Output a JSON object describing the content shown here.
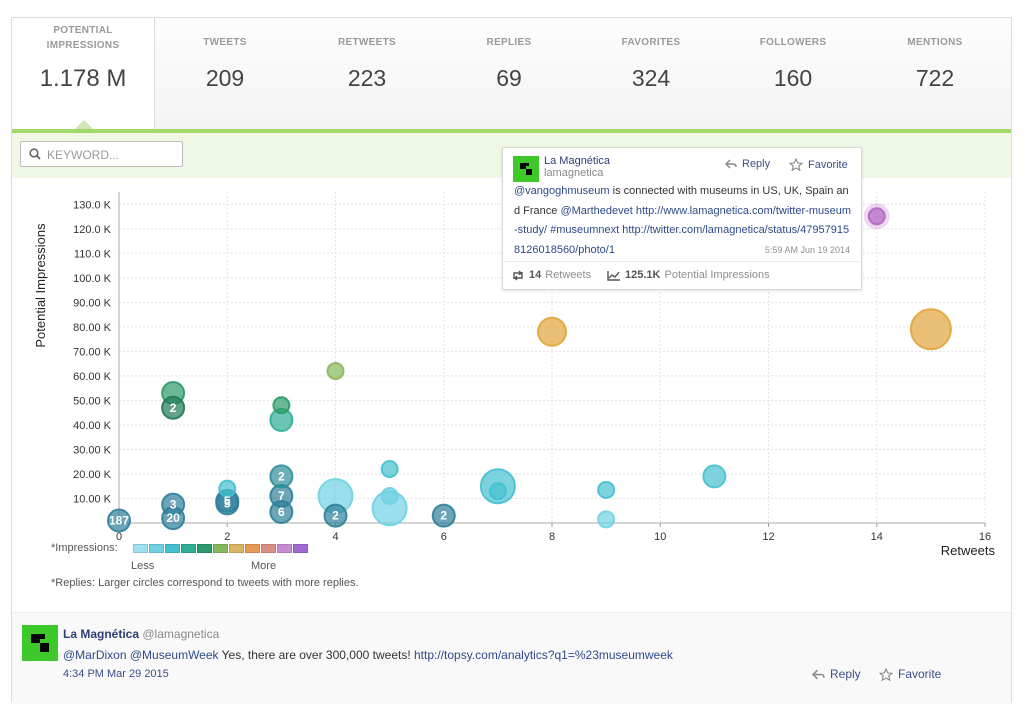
{
  "stats": [
    {
      "label": "POTENTIAL\nIMPRESSIONS",
      "value": "1.178 M",
      "active": true
    },
    {
      "label": "TWEETS",
      "value": "209"
    },
    {
      "label": "RETWEETS",
      "value": "223"
    },
    {
      "label": "REPLIES",
      "value": "69"
    },
    {
      "label": "FAVORITES",
      "value": "324"
    },
    {
      "label": "FOLLOWERS",
      "value": "160"
    },
    {
      "label": "MENTIONS",
      "value": "722"
    }
  ],
  "search": {
    "placeholder": "KEYWORD..."
  },
  "legend": {
    "impressions_label": "*Impressions:",
    "less": "Less",
    "more": "More",
    "replies_note": "*Replies: Larger circles correspond to tweets with more replies.",
    "colors": [
      "#9ee0ef",
      "#6fd1e3",
      "#44c0cf",
      "#2fae95",
      "#2b9a6a",
      "#86b85c",
      "#d9b565",
      "#e79a55",
      "#d98f86",
      "#c68ed0",
      "#a06ad0"
    ]
  },
  "chart_data": {
    "type": "scatter",
    "xlabel": "Retweets",
    "ylabel": "Potential Impressions",
    "xlim": [
      0,
      16
    ],
    "ylim": [
      0,
      135000
    ],
    "x_ticks": [
      0,
      2,
      4,
      6,
      8,
      10,
      12,
      14,
      16
    ],
    "y_ticks": [
      {
        "v": 10000,
        "label": "10.00 K"
      },
      {
        "v": 20000,
        "label": "20.00 K"
      },
      {
        "v": 30000,
        "label": "30.00 K"
      },
      {
        "v": 40000,
        "label": "40.00 K"
      },
      {
        "v": 50000,
        "label": "50.00 K"
      },
      {
        "v": 60000,
        "label": "60.00 K"
      },
      {
        "v": 70000,
        "label": "70.00 K"
      },
      {
        "v": 80000,
        "label": "80.00 K"
      },
      {
        "v": 90000,
        "label": "90.00 K"
      },
      {
        "v": 100000,
        "label": "100.0 K"
      },
      {
        "v": 110000,
        "label": "110.0 K"
      },
      {
        "v": 120000,
        "label": "120.0 K"
      },
      {
        "v": 130000,
        "label": "130.0 K"
      }
    ],
    "grid": true,
    "points": [
      {
        "x": 0,
        "y": 1000,
        "replies": 1,
        "color": "#2f7f9a",
        "count": "187"
      },
      {
        "x": 1,
        "y": 2000,
        "replies": 1,
        "color": "#2f7f9a",
        "count": "20"
      },
      {
        "x": 1,
        "y": 7500,
        "replies": 1,
        "color": "#2f7f9a",
        "count": "3"
      },
      {
        "x": 1,
        "y": 53000,
        "replies": 1,
        "color": "#2b9a6a"
      },
      {
        "x": 1,
        "y": 47000,
        "replies": 1,
        "color": "#1f7a55",
        "count": "2"
      },
      {
        "x": 2,
        "y": 14000,
        "replies": 0,
        "color": "#44c0cf"
      },
      {
        "x": 2,
        "y": 9000,
        "replies": 1,
        "color": "#2f7f9a",
        "count": "5"
      },
      {
        "x": 2,
        "y": 8000,
        "replies": 1,
        "color": "#2f7f9a",
        "count": "5"
      },
      {
        "x": 3,
        "y": 4500,
        "replies": 1,
        "color": "#2f7f9a",
        "count": "6"
      },
      {
        "x": 3,
        "y": 11000,
        "replies": 1,
        "color": "#2f7f9a",
        "count": "7"
      },
      {
        "x": 3,
        "y": 19000,
        "replies": 1,
        "color": "#2f8f9a",
        "count": "2"
      },
      {
        "x": 3,
        "y": 42000,
        "replies": 1,
        "color": "#2fae95"
      },
      {
        "x": 3,
        "y": 48000,
        "replies": 0,
        "color": "#2b9a6a"
      },
      {
        "x": 4,
        "y": 11000,
        "replies": 3,
        "color": "#6fd1e3"
      },
      {
        "x": 4,
        "y": 3000,
        "replies": 1,
        "color": "#2f7f9a",
        "count": "2"
      },
      {
        "x": 4,
        "y": 62000,
        "replies": 0,
        "color": "#86b85c"
      },
      {
        "x": 5,
        "y": 22000,
        "replies": 0,
        "color": "#44c0cf"
      },
      {
        "x": 5,
        "y": 6000,
        "replies": 3,
        "color": "#6fd1e3"
      },
      {
        "x": 5,
        "y": 11000,
        "replies": 0,
        "color": "#6fd1e3"
      },
      {
        "x": 6,
        "y": 3000,
        "replies": 1,
        "color": "#2f7f9a",
        "count": "2"
      },
      {
        "x": 7,
        "y": 15000,
        "replies": 3,
        "color": "#44c0cf"
      },
      {
        "x": 7,
        "y": 13000,
        "replies": 0,
        "color": "#44c0cf"
      },
      {
        "x": 8,
        "y": 78000,
        "replies": 2,
        "color": "#e0a53a"
      },
      {
        "x": 9,
        "y": 13500,
        "replies": 0,
        "color": "#44c0cf"
      },
      {
        "x": 9,
        "y": 1500,
        "replies": 0,
        "color": "#6fd1e3"
      },
      {
        "x": 11,
        "y": 19000,
        "replies": 1,
        "color": "#44c0cf"
      },
      {
        "x": 14,
        "y": 125100,
        "replies": 0,
        "color": "#b266c2",
        "highlighted": true
      },
      {
        "x": 15,
        "y": 79000,
        "replies": 4,
        "color": "#e0a53a"
      }
    ]
  },
  "tooltip": {
    "name": "La Magnética",
    "handle": "lamagnetica",
    "reply": "Reply",
    "favorite": "Favorite",
    "text_mention": "@vangoghmuseum",
    "text_mid": " is connected with museums in US, UK, Spain and France ",
    "text_mention2": "@Marthedevet",
    "text_link1": " http://www.lamagnetica.com/twitter-museum-study/",
    "text_hashtag": " #museumnext",
    "text_link2": " http://twitter.com/lamagnetica/status/479579158126018560/photo/1",
    "time": "5:59 AM Jun 19 2014",
    "retweets_value": "14",
    "retweets_label": "Retweets",
    "impressions_value": "125.1K",
    "impressions_label": "Potential Impressions"
  },
  "tweet": {
    "name": "La Magnética",
    "handle": "@lamagnetica",
    "mention1": "@MarDixon",
    "mention2": "@MuseumWeek",
    "text": " Yes, there are over 300,000 tweets! ",
    "link": "http://topsy.com/analytics?q1=%23museumweek",
    "time": "4:34 PM Mar 29 2015",
    "reply": "Reply",
    "favorite": "Favorite"
  }
}
